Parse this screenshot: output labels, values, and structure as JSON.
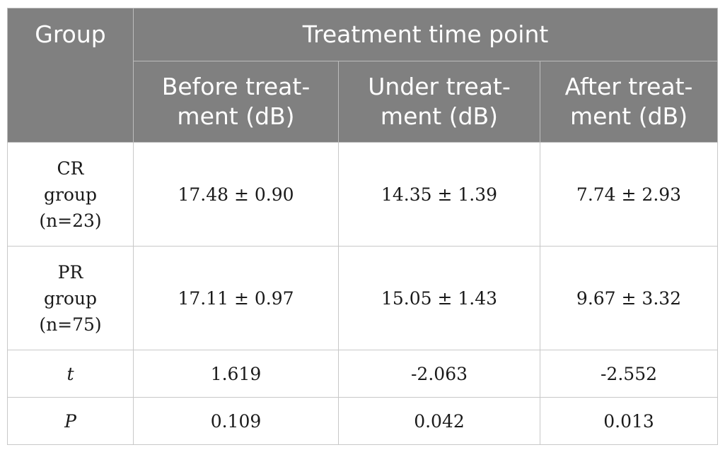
{
  "header": {
    "group": "Group",
    "timepoint": "Treatment time point",
    "columns": [
      {
        "line1": "Before treat-",
        "line2": "ment (dB)"
      },
      {
        "line1": "Under treat-",
        "line2": "ment (dB)"
      },
      {
        "line1": "After treat-",
        "line2": "ment (dB)"
      }
    ]
  },
  "rows": [
    {
      "label": [
        "CR",
        "group",
        "(n=23)"
      ],
      "values": [
        "17.48 ± 0.90",
        "14.35 ± 1.39",
        "7.74 ± 2.93"
      ]
    },
    {
      "label": [
        "PR",
        "group",
        "(n=75)"
      ],
      "values": [
        "17.11 ± 0.97",
        "15.05 ± 1.43",
        "9.67 ± 3.32"
      ]
    },
    {
      "label": [
        "t"
      ],
      "values": [
        "1.619",
        "-2.063",
        "-2.552"
      ]
    },
    {
      "label": [
        "P"
      ],
      "values": [
        "0.109",
        "0.042",
        "0.013"
      ]
    }
  ]
}
